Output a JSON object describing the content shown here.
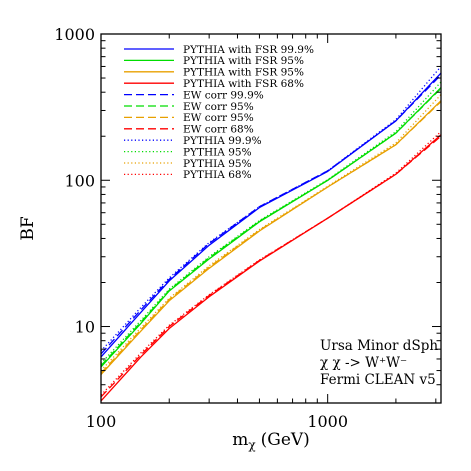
{
  "chart_data": {
    "type": "line",
    "xlabel": "m",
    "xlabel_sub": "χ",
    "xlabel_unit": "(GeV)",
    "ylabel": "BF",
    "x_scale": "log",
    "y_scale": "log",
    "xlim": [
      100,
      3162
    ],
    "ylim": [
      3,
      1000
    ],
    "x_ticks": [
      {
        "value": 100,
        "label": "100"
      },
      {
        "value": 1000,
        "label": "1000"
      }
    ],
    "y_ticks": [
      {
        "value": 10,
        "label": "10"
      },
      {
        "value": 100,
        "label": "100"
      },
      {
        "value": 1000,
        "label": "1000"
      }
    ],
    "grid": false,
    "legend_position": "top-left",
    "annotation": [
      "Ursa Minor dSph",
      "χ χ -> W⁺W⁻",
      "Fermi CLEAN v5"
    ],
    "x": [
      100,
      150,
      200,
      300,
      500,
      1000,
      2000,
      3162
    ],
    "series": [
      {
        "name": "PYTHIA with FSR 99.9%",
        "color": "#0000ff",
        "style": "solid",
        "values": [
          6.2,
          12.5,
          20.5,
          36,
          65,
          115,
          255,
          540
        ]
      },
      {
        "name": "PYTHIA with FSR 95%",
        "color": "#00dd00",
        "style": "solid",
        "values": [
          5.3,
          10.5,
          17.5,
          29,
          52,
          100,
          210,
          430
        ]
      },
      {
        "name": "PYTHIA with FSR 95%",
        "color": "#e8a000",
        "style": "solid",
        "values": [
          4.7,
          9.3,
          15,
          25,
          45,
          90,
          175,
          350
        ]
      },
      {
        "name": "PYTHIA with FSR 68%",
        "color": "#ff0000",
        "style": "solid",
        "values": [
          3.1,
          6.2,
          9.7,
          16,
          28,
          55,
          110,
          205
        ]
      },
      {
        "name": "EW corr 99.9%",
        "color": "#0000ff",
        "style": "dashed",
        "values": [
          6.5,
          13.0,
          21,
          37,
          66,
          116,
          255,
          525
        ]
      },
      {
        "name": "EW corr 95%",
        "color": "#00dd00",
        "style": "dashed",
        "values": [
          5.4,
          10.7,
          17.7,
          29.5,
          52.5,
          100,
          210,
          425
        ]
      },
      {
        "name": "EW corr 95%",
        "color": "#e8a000",
        "style": "dashed",
        "values": [
          4.8,
          9.5,
          15.3,
          25.5,
          45.5,
          90,
          175,
          345
        ]
      },
      {
        "name": "EW corr 68%",
        "color": "#ff0000",
        "style": "dashed",
        "values": [
          3.3,
          6.4,
          10,
          16.3,
          28.3,
          55,
          110,
          200
        ]
      },
      {
        "name": "PYTHIA 99.9%",
        "color": "#0000ff",
        "style": "dotted",
        "values": [
          6.8,
          13.5,
          21.5,
          37.5,
          66,
          116,
          260,
          600
        ]
      },
      {
        "name": "PYTHIA 95%",
        "color": "#00dd00",
        "style": "dotted",
        "values": [
          5.6,
          11.0,
          18,
          30,
          53,
          101,
          215,
          470
        ]
      },
      {
        "name": "PYTHIA 95%",
        "color": "#e8a000",
        "style": "dotted",
        "values": [
          5.0,
          9.8,
          15.6,
          26,
          46,
          91,
          180,
          385
        ]
      },
      {
        "name": "PYTHIA 68%",
        "color": "#ff0000",
        "style": "dotted",
        "values": [
          3.4,
          6.6,
          10.2,
          16.5,
          28.5,
          55,
          112,
          215
        ]
      }
    ]
  }
}
